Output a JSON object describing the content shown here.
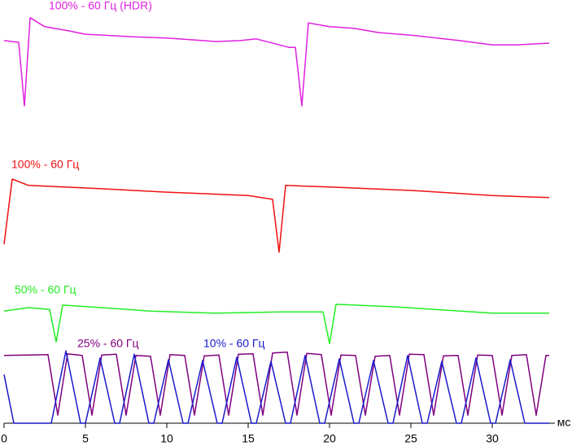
{
  "chart_data": {
    "type": "line",
    "x_label": "мс",
    "xlim": [
      0,
      34.9
    ],
    "xticks": [
      0,
      5,
      10,
      15,
      20,
      25,
      30
    ],
    "ylim": [
      0,
      100
    ],
    "series": [
      {
        "name": "100% - 60 Гц (HDR)",
        "color": "#e020e0",
        "x": [
          0,
          0.9,
          1.25,
          1.6,
          2.5,
          4,
          5,
          8,
          10,
          13,
          14.5,
          15.5,
          17.5,
          17.9,
          18.3,
          18.7,
          20,
          21.5,
          23,
          25,
          28,
          30,
          31.5,
          33.5
        ],
        "values": [
          90.4,
          90.0,
          75.0,
          95.8,
          93.7,
          92.7,
          91.9,
          91.3,
          91.0,
          90.2,
          90.4,
          90.8,
          88.8,
          88.8,
          75.0,
          94.6,
          93.7,
          93.3,
          92.3,
          91.7,
          90.4,
          89.4,
          89.4,
          89.8
        ]
      },
      {
        "name": "100% - 60 Гц",
        "color": "#ee1111",
        "x": [
          0,
          0.5,
          1.5,
          6,
          10,
          15,
          16.5,
          16.9,
          17.3,
          20,
          25,
          30,
          33.5
        ],
        "values": [
          42.3,
          57.7,
          56.2,
          55.4,
          54.6,
          53.8,
          52.9,
          40.4,
          56.2,
          55.8,
          55.0,
          53.8,
          53.3
        ]
      },
      {
        "name": "50% - 60 Гц",
        "color": "#22ee22",
        "x": [
          0,
          1.5,
          2.8,
          3.2,
          3.6,
          6,
          9,
          13,
          17,
          19.6,
          20,
          20.4,
          24,
          30,
          33.5
        ],
        "values": [
          26.5,
          27.3,
          26.9,
          19.2,
          27.9,
          27.3,
          26.5,
          26.0,
          26.3,
          26.3,
          18.8,
          28.1,
          27.5,
          26.0,
          26.0
        ]
      },
      {
        "name": "25% - 60 Гц",
        "color": "#800080",
        "x": [
          0,
          2.7,
          3.3,
          3.9,
          4.8,
          5.4,
          6.0,
          6.9,
          7.5,
          8.1,
          9.0,
          9.6,
          10.2,
          11.1,
          11.7,
          12.3,
          13.2,
          13.8,
          14.4,
          15.3,
          15.9,
          16.5,
          17.4,
          18.0,
          18.6,
          19.5,
          20.1,
          20.7,
          21.6,
          22.2,
          22.8,
          23.7,
          24.3,
          24.9,
          25.8,
          26.4,
          27.0,
          27.9,
          28.5,
          29.1,
          30.0,
          30.6,
          31.2,
          32.1,
          32.7,
          33.3,
          33.5
        ],
        "values": [
          16.0,
          16.2,
          1.9,
          16.4,
          16.0,
          1.9,
          16.1,
          16.3,
          1.9,
          16.0,
          15.8,
          1.9,
          16.2,
          16.0,
          1.9,
          15.9,
          16.1,
          1.9,
          16.3,
          16.4,
          1.9,
          16.6,
          16.8,
          1.9,
          16.5,
          16.2,
          1.9,
          16.1,
          16.0,
          1.9,
          15.8,
          16.0,
          1.9,
          16.3,
          16.2,
          1.9,
          15.9,
          16.0,
          1.9,
          16.1,
          16.0,
          1.9,
          16.0,
          16.2,
          1.9,
          16.0,
          16.0
        ]
      },
      {
        "name": "10% - 60 Гц",
        "color": "#1a1acc",
        "x": [
          0,
          0.6,
          2.9,
          3.8,
          4.7,
          5.0,
          5.9,
          6.8,
          7.1,
          8.0,
          8.9,
          9.2,
          10.1,
          11.0,
          11.3,
          12.2,
          13.1,
          13.4,
          14.3,
          15.2,
          15.5,
          16.4,
          17.3,
          17.6,
          18.5,
          19.4,
          19.7,
          20.6,
          21.5,
          21.8,
          22.7,
          23.6,
          23.9,
          24.8,
          25.7,
          26.0,
          26.9,
          27.8,
          28.1,
          29.0,
          29.9,
          30.2,
          31.1,
          32.0,
          33.5
        ],
        "values": [
          11.5,
          0,
          0,
          17.1,
          0,
          0,
          15.4,
          0,
          0,
          16.3,
          0,
          0,
          15.0,
          0,
          0,
          14.8,
          0,
          0,
          15.6,
          0,
          0,
          14.6,
          0,
          0,
          16.0,
          0,
          0,
          15.2,
          0,
          0,
          14.8,
          0,
          0,
          16.0,
          0,
          0,
          14.6,
          0,
          0,
          15.4,
          0,
          0,
          15.0,
          0,
          0
        ]
      }
    ]
  }
}
